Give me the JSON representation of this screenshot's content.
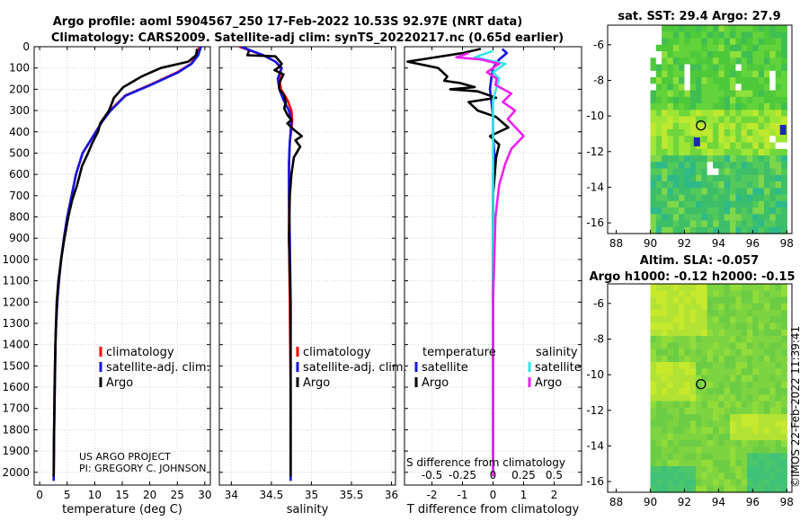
{
  "title_line1": "Argo profile: aoml 5904567_250 17-Feb-2022 10.53S 92.97E (NRT data)",
  "title_line2": "Climatology: CARS2009. Satellite-adj clim: synTS_20220217.nc (0.65d earlier)",
  "stamp": "©IMOS 22-Feb-2022 11:39:41",
  "colors": {
    "climatology": "#ff0000",
    "satellite": "#1414e6",
    "argo": "#000000",
    "sat_salinity": "#33e6e6",
    "argo_salinity": "#ee22ee"
  },
  "chart_data": [
    {
      "id": "temperature",
      "type": "line",
      "xlabel": "temperature (deg C)",
      "ylabel": "",
      "xlim": [
        -1,
        31
      ],
      "ylim": [
        2060,
        0
      ],
      "xticks": [
        "0",
        "5",
        "10",
        "15",
        "20",
        "25",
        "30"
      ],
      "xtick_values": [
        0,
        5,
        10,
        15,
        20,
        25,
        30
      ],
      "yticks": [
        "0",
        "100",
        "200",
        "300",
        "400",
        "500",
        "600",
        "700",
        "800",
        "900",
        "1000",
        "1100",
        "1200",
        "1300",
        "1400",
        "1500",
        "1600",
        "1700",
        "1800",
        "1900",
        "2000"
      ],
      "ytick_values": [
        0,
        100,
        200,
        300,
        400,
        500,
        600,
        700,
        800,
        900,
        1000,
        1100,
        1200,
        1300,
        1400,
        1500,
        1600,
        1700,
        1800,
        1900,
        2000
      ],
      "legend": [
        "climatology",
        "satellite-adj. clim.",
        "Argo"
      ],
      "legend_placement": "lower-right",
      "annotations": [
        "US ARGO PROJECT",
        "PI: GREGORY C. JOHNSON"
      ],
      "series": [
        {
          "name": "climatology",
          "color": "#ff0000",
          "x": [
            29.0,
            28.5,
            27.5,
            25.0,
            20.0,
            15.5,
            12.8,
            11.4,
            10.2,
            9.0,
            7.8,
            6.6,
            5.8,
            5.0,
            4.4,
            3.9,
            3.5,
            3.2,
            3.0,
            2.85,
            2.7,
            2.62,
            2.55
          ],
          "y": [
            0,
            40,
            80,
            120,
            180,
            230,
            300,
            350,
            400,
            450,
            500,
            600,
            700,
            800,
            900,
            1000,
            1100,
            1200,
            1300,
            1400,
            1600,
            1800,
            2040
          ]
        },
        {
          "name": "satellite-adj. clim.",
          "color": "#1414e6",
          "x": [
            29.3,
            28.8,
            27.6,
            25.2,
            20.2,
            15.6,
            12.9,
            11.4,
            10.2,
            9.0,
            7.8,
            6.6,
            5.8,
            5.0,
            4.4,
            3.9,
            3.5,
            3.2,
            3.0,
            2.85,
            2.7,
            2.62,
            2.55
          ],
          "y": [
            0,
            40,
            80,
            120,
            180,
            230,
            300,
            350,
            400,
            450,
            500,
            600,
            700,
            800,
            900,
            1000,
            1100,
            1200,
            1300,
            1400,
            1600,
            1800,
            2040
          ]
        },
        {
          "name": "Argo",
          "color": "#000000",
          "x": [
            28.6,
            28.4,
            27.0,
            22.0,
            18.5,
            15.2,
            13.5,
            12.6,
            11.0,
            10.6,
            9.6,
            8.8,
            7.7,
            6.8,
            5.9,
            5.2,
            4.5,
            3.9,
            3.4,
            3.1,
            2.9,
            2.75,
            2.6,
            2.55
          ],
          "y": [
            10,
            40,
            70,
            100,
            140,
            190,
            240,
            300,
            360,
            400,
            450,
            500,
            560,
            650,
            720,
            800,
            900,
            1000,
            1100,
            1200,
            1350,
            1600,
            1850,
            2020
          ]
        }
      ]
    },
    {
      "id": "salinity",
      "type": "line",
      "xlabel": "salinity",
      "xlim": [
        33.85,
        36.05
      ],
      "ylim": [
        2060,
        0
      ],
      "xticks": [
        "34",
        "34.5",
        "35",
        "35.5",
        "36"
      ],
      "xtick_values": [
        34,
        34.5,
        35,
        35.5,
        36
      ],
      "legend": [
        "climatology",
        "satellite-adj. clim.",
        "Argo"
      ],
      "legend_placement": "lower-right",
      "series": [
        {
          "name": "climatology",
          "color": "#ff0000",
          "x": [
            34.1,
            34.4,
            34.55,
            34.62,
            34.6,
            34.62,
            34.7,
            34.75,
            34.76,
            34.73,
            34.72,
            34.72,
            34.72,
            34.73,
            34.74,
            34.74
          ],
          "y": [
            0,
            40,
            70,
            100,
            150,
            200,
            250,
            300,
            350,
            450,
            550,
            700,
            900,
            1200,
            1600,
            2040
          ]
        },
        {
          "name": "satellite-adj. clim.",
          "color": "#1414e6",
          "x": [
            34.12,
            34.4,
            34.55,
            34.63,
            34.58,
            34.6,
            34.65,
            34.72,
            34.75,
            34.73,
            34.72,
            34.72,
            34.73,
            34.74,
            34.74
          ],
          "y": [
            0,
            40,
            70,
            100,
            150,
            200,
            250,
            300,
            350,
            450,
            550,
            700,
            900,
            1200,
            2040
          ]
        },
        {
          "name": "Argo",
          "color": "#000000",
          "x": [
            34.22,
            34.2,
            34.55,
            34.63,
            34.6,
            34.54,
            34.65,
            34.6,
            34.6,
            34.66,
            34.68,
            34.66,
            34.7,
            34.75,
            34.7,
            34.78,
            34.88,
            34.8,
            34.86,
            34.78,
            34.75,
            34.73,
            34.72,
            34.74,
            34.74,
            34.74
          ],
          "y": [
            20,
            40,
            45,
            80,
            95,
            110,
            130,
            170,
            200,
            230,
            260,
            290,
            320,
            345,
            360,
            390,
            420,
            440,
            470,
            520,
            600,
            700,
            900,
            1200,
            1600,
            2020
          ]
        }
      ]
    },
    {
      "id": "differences",
      "type": "line",
      "xlabel": "T difference from climatology",
      "top_axis_label": "S difference from climatology",
      "xlim": [
        -2.9,
        2.9
      ],
      "ylim": [
        2060,
        0
      ],
      "xticks": [
        "-2",
        "-1",
        "0",
        "1",
        "2"
      ],
      "xtick_values": [
        -2,
        -1,
        0,
        1,
        2
      ],
      "secondary_xticks": [
        "-0.5",
        "-0.25",
        "0",
        "0.25",
        "0.5"
      ],
      "secondary_xtick_values": [
        -0.5,
        -0.25,
        0,
        0.25,
        0.5
      ],
      "legend_temperature_title": "temperature",
      "legend_salinity_title": "salinity",
      "legend": [
        "satellite",
        "Argo",
        "satellite",
        "Argo"
      ],
      "legend_placement": "lower-left and lower-right",
      "series": [
        {
          "name": "temperature satellite",
          "color": "#1414e6",
          "x": [
            0.3,
            0.45,
            0.2,
            0.0,
            -0.05,
            -0.1,
            -0.05,
            0.0,
            0.0,
            0.05,
            0.0,
            0.0,
            0.0
          ],
          "y": [
            10,
            30,
            60,
            100,
            140,
            200,
            260,
            330,
            420,
            520,
            600,
            900,
            2000
          ]
        },
        {
          "name": "temperature Argo",
          "color": "#000000",
          "x": [
            -0.4,
            -1.0,
            -2.8,
            -1.8,
            -1.5,
            -1.6,
            -1.1,
            -0.6,
            -1.4,
            -0.5,
            0.1,
            -0.8,
            -0.5,
            0.1,
            0.5,
            -0.1,
            0.2,
            0.1,
            0.0,
            0.0,
            0.0
          ],
          "y": [
            10,
            30,
            70,
            100,
            140,
            160,
            170,
            190,
            200,
            210,
            240,
            260,
            300,
            330,
            380,
            420,
            460,
            520,
            700,
            1200,
            2020
          ]
        },
        {
          "name": "salinity satellite",
          "color": "#33e6e6",
          "x": [
            0.0,
            -0.15,
            0.1,
            0.0,
            0.05,
            0.0,
            0.0,
            0.0,
            0.0
          ],
          "y": [
            20,
            50,
            80,
            120,
            150,
            250,
            500,
            1200,
            2000
          ]
        },
        {
          "name": "salinity Argo",
          "color": "#ee22ee",
          "x": [
            -0.2,
            -0.3,
            -0.1,
            0.05,
            0.0,
            -0.05,
            0.03,
            0.02,
            0.15,
            0.08,
            0.18,
            0.12,
            0.25,
            0.15,
            0.1,
            0.05,
            0.02,
            0.0,
            0.0,
            0.0
          ],
          "y": [
            30,
            50,
            60,
            80,
            100,
            120,
            150,
            180,
            220,
            260,
            300,
            340,
            420,
            480,
            550,
            650,
            800,
            1200,
            1600,
            2020
          ]
        }
      ]
    },
    {
      "id": "sst_map",
      "type": "heatmap",
      "title": "sat. SST: 29.4 Argo: 27.9",
      "xlim": [
        87.5,
        98.3
      ],
      "ylim": [
        -16.6,
        -4.9
      ],
      "xticks": [
        "88",
        "90",
        "92",
        "94",
        "96",
        "98"
      ],
      "xtick_values": [
        88,
        90,
        92,
        94,
        96,
        98
      ],
      "yticks": [
        "-6",
        "-8",
        "-10",
        "-12",
        "-14",
        "-16"
      ],
      "ytick_values": [
        -6,
        -8,
        -10,
        -12,
        -14,
        -16
      ],
      "data_extent_lon": [
        90,
        98
      ],
      "float_position": {
        "lon": 92.97,
        "lat": -10.53
      }
    },
    {
      "id": "sla_map",
      "type": "heatmap",
      "title_line1": "Altim. SLA: -0.057",
      "title_line2": "Argo h1000: -0.12 h2000: -0.15",
      "xlim": [
        87.5,
        98.3
      ],
      "ylim": [
        -16.6,
        -4.9
      ],
      "xticks": [
        "88",
        "90",
        "92",
        "94",
        "96",
        "98"
      ],
      "xtick_values": [
        88,
        90,
        92,
        94,
        96,
        98
      ],
      "yticks": [
        "-6",
        "-8",
        "-10",
        "-12",
        "-14",
        "-16"
      ],
      "ytick_values": [
        -6,
        -8,
        -10,
        -12,
        -14,
        -16
      ],
      "data_extent_lon": [
        90,
        98
      ],
      "float_position": {
        "lon": 92.97,
        "lat": -10.53
      }
    }
  ]
}
